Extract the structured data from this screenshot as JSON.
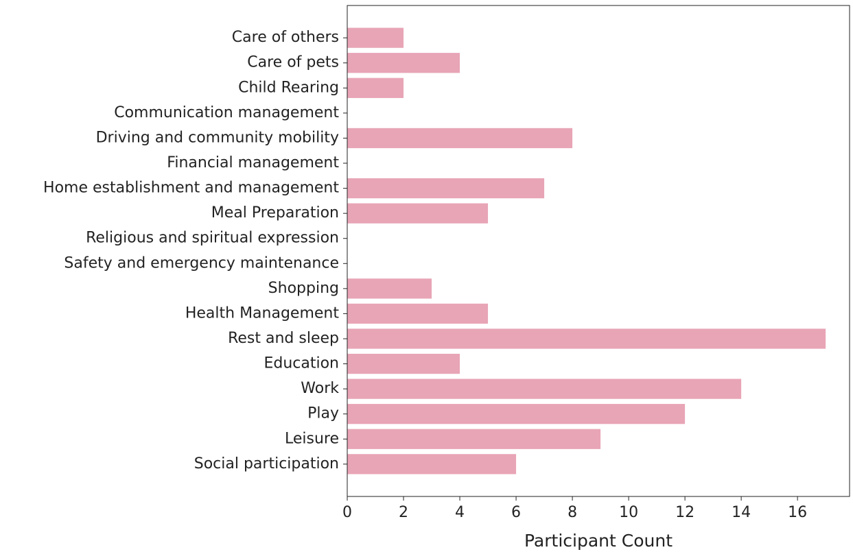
{
  "chart_data": {
    "type": "barh",
    "x_label": "Participant Count",
    "categories": [
      "Care of others",
      "Care of pets",
      "Child Rearing",
      "Communication management",
      "Driving and community mobility",
      "Financial management",
      "Home establishment and management",
      "Meal Preparation",
      "Religious and spiritual expression",
      "Safety and emergency maintenance",
      "Shopping",
      "Health Management",
      "Rest and sleep",
      "Education",
      "Work",
      "Play",
      "Leisure",
      "Social participation"
    ],
    "values": [
      2,
      4,
      2,
      0,
      8,
      0,
      7,
      5,
      0,
      0,
      3,
      5,
      17,
      4,
      14,
      12,
      9,
      6
    ],
    "color": "#e8a5b6",
    "xlim": [
      0,
      17.85
    ],
    "xticks": [
      0,
      2,
      4,
      6,
      8,
      10,
      12,
      14,
      16
    ]
  }
}
